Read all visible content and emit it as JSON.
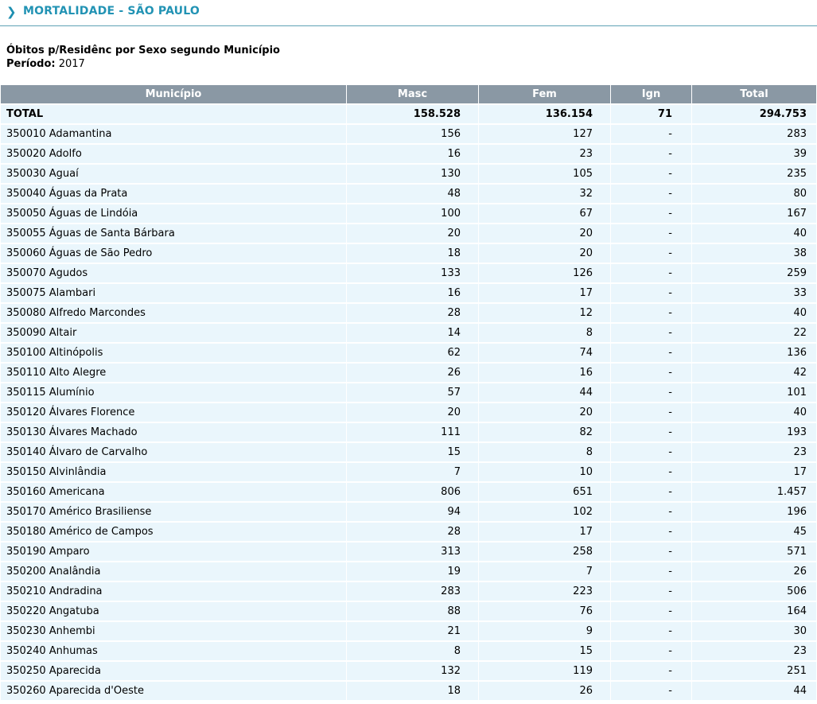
{
  "header": {
    "title": "MORTALIDADE - SÃO PAULO",
    "chevron": "chevron-right-icon"
  },
  "report": {
    "subtitle": "Óbitos p/Residênc por Sexo segundo Município",
    "period_label": "Período:",
    "period_value": "2017"
  },
  "table": {
    "columns": [
      "Município",
      "Masc",
      "Fem",
      "Ign",
      "Total"
    ],
    "total_row": [
      "TOTAL",
      "158.528",
      "136.154",
      "71",
      "294.753"
    ],
    "rows": [
      [
        "350010 Adamantina",
        "156",
        "127",
        "-",
        "283"
      ],
      [
        "350020 Adolfo",
        "16",
        "23",
        "-",
        "39"
      ],
      [
        "350030 Aguaí",
        "130",
        "105",
        "-",
        "235"
      ],
      [
        "350040 Águas da Prata",
        "48",
        "32",
        "-",
        "80"
      ],
      [
        "350050 Águas de Lindóia",
        "100",
        "67",
        "-",
        "167"
      ],
      [
        "350055 Águas de Santa Bárbara",
        "20",
        "20",
        "-",
        "40"
      ],
      [
        "350060 Águas de São Pedro",
        "18",
        "20",
        "-",
        "38"
      ],
      [
        "350070 Agudos",
        "133",
        "126",
        "-",
        "259"
      ],
      [
        "350075 Alambari",
        "16",
        "17",
        "-",
        "33"
      ],
      [
        "350080 Alfredo Marcondes",
        "28",
        "12",
        "-",
        "40"
      ],
      [
        "350090 Altair",
        "14",
        "8",
        "-",
        "22"
      ],
      [
        "350100 Altinópolis",
        "62",
        "74",
        "-",
        "136"
      ],
      [
        "350110 Alto Alegre",
        "26",
        "16",
        "-",
        "42"
      ],
      [
        "350115 Alumínio",
        "57",
        "44",
        "-",
        "101"
      ],
      [
        "350120 Álvares Florence",
        "20",
        "20",
        "-",
        "40"
      ],
      [
        "350130 Álvares Machado",
        "111",
        "82",
        "-",
        "193"
      ],
      [
        "350140 Álvaro de Carvalho",
        "15",
        "8",
        "-",
        "23"
      ],
      [
        "350150 Alvinlândia",
        "7",
        "10",
        "-",
        "17"
      ],
      [
        "350160 Americana",
        "806",
        "651",
        "-",
        "1.457"
      ],
      [
        "350170 Américo Brasiliense",
        "94",
        "102",
        "-",
        "196"
      ],
      [
        "350180 Américo de Campos",
        "28",
        "17",
        "-",
        "45"
      ],
      [
        "350190 Amparo",
        "313",
        "258",
        "-",
        "571"
      ],
      [
        "350200 Analândia",
        "19",
        "7",
        "-",
        "26"
      ],
      [
        "350210 Andradina",
        "283",
        "223",
        "-",
        "506"
      ],
      [
        "350220 Angatuba",
        "88",
        "76",
        "-",
        "164"
      ],
      [
        "350230 Anhembi",
        "21",
        "9",
        "-",
        "30"
      ],
      [
        "350240 Anhumas",
        "8",
        "15",
        "-",
        "23"
      ],
      [
        "350250 Aparecida",
        "132",
        "119",
        "-",
        "251"
      ],
      [
        "350260 Aparecida d'Oeste",
        "18",
        "26",
        "-",
        "44"
      ]
    ]
  }
}
